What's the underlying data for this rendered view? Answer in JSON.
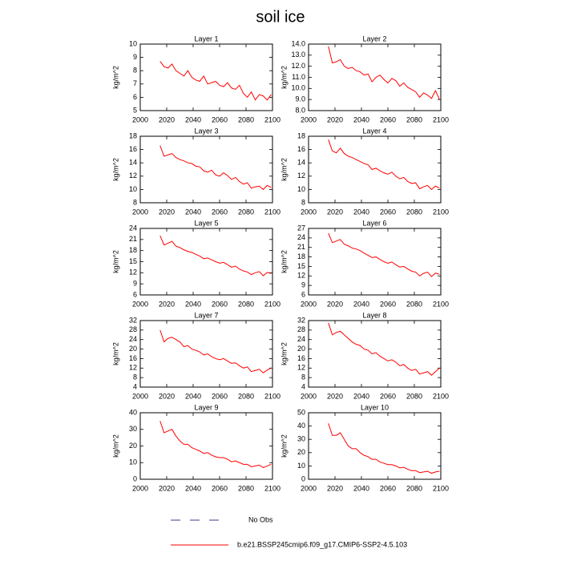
{
  "title": "soil ice",
  "chart_data": [
    {
      "type": "line",
      "title": "Layer 1",
      "ylabel": "kg/m^2",
      "xlim": [
        2000,
        2100
      ],
      "xticks": [
        2000,
        2020,
        2040,
        2060,
        2080,
        2100
      ],
      "ylim": [
        5,
        10
      ],
      "yticks": [
        5,
        6,
        7,
        8,
        9,
        10
      ],
      "x": [
        2015,
        2018,
        2021,
        2024,
        2027,
        2030,
        2033,
        2036,
        2039,
        2042,
        2045,
        2048,
        2051,
        2054,
        2057,
        2060,
        2063,
        2066,
        2069,
        2072,
        2075,
        2078,
        2081,
        2084,
        2087,
        2090,
        2093,
        2096,
        2099
      ],
      "color": "#ff0000",
      "values": [
        8.7,
        8.3,
        8.2,
        8.5,
        8.0,
        7.8,
        7.6,
        8.0,
        7.5,
        7.3,
        7.2,
        7.6,
        7.0,
        7.1,
        7.2,
        6.9,
        6.8,
        7.1,
        6.7,
        6.6,
        6.9,
        6.3,
        6.0,
        6.4,
        5.8,
        6.2,
        6.1,
        5.8,
        6.2
      ]
    },
    {
      "type": "line",
      "title": "Layer 2",
      "ylabel": "kg/m^2",
      "xlim": [
        2000,
        2100
      ],
      "xticks": [
        2000,
        2020,
        2040,
        2060,
        2080,
        2100
      ],
      "ylim": [
        8,
        14
      ],
      "yticks": [
        {
          "value": 8,
          "label": "8.0"
        },
        {
          "value": 9,
          "label": "9.0"
        },
        {
          "value": 10,
          "label": "10.0"
        },
        {
          "value": 11,
          "label": "11.0"
        },
        {
          "value": 12,
          "label": "12.0"
        },
        {
          "value": 13,
          "label": "13.0"
        },
        {
          "value": 14,
          "label": "14.0"
        }
      ],
      "x": [
        2015,
        2018,
        2021,
        2024,
        2027,
        2030,
        2033,
        2036,
        2039,
        2042,
        2045,
        2048,
        2051,
        2054,
        2057,
        2060,
        2063,
        2066,
        2069,
        2072,
        2075,
        2078,
        2081,
        2084,
        2087,
        2090,
        2093,
        2096,
        2099
      ],
      "color": "#ff0000",
      "values": [
        13.8,
        12.3,
        12.4,
        12.6,
        12.0,
        11.8,
        11.9,
        11.6,
        11.5,
        11.2,
        11.3,
        10.6,
        11.0,
        11.2,
        10.8,
        10.5,
        10.9,
        10.7,
        10.2,
        10.5,
        10.1,
        9.9,
        9.7,
        9.2,
        9.6,
        9.4,
        9.1,
        9.8,
        9.0
      ]
    },
    {
      "type": "line",
      "title": "Layer 3",
      "ylabel": "kg/m^2",
      "xlim": [
        2000,
        2100
      ],
      "xticks": [
        2000,
        2020,
        2040,
        2060,
        2080,
        2100
      ],
      "ylim": [
        8,
        18
      ],
      "yticks": [
        8,
        10,
        12,
        14,
        16,
        18
      ],
      "x": [
        2015,
        2018,
        2021,
        2024,
        2027,
        2030,
        2033,
        2036,
        2039,
        2042,
        2045,
        2048,
        2051,
        2054,
        2057,
        2060,
        2063,
        2066,
        2069,
        2072,
        2075,
        2078,
        2081,
        2084,
        2087,
        2090,
        2093,
        2096,
        2099
      ],
      "color": "#ff0000",
      "values": [
        16.6,
        15.0,
        15.2,
        15.4,
        14.8,
        14.5,
        14.3,
        14.0,
        13.9,
        13.5,
        13.4,
        12.8,
        12.6,
        12.9,
        12.2,
        12.0,
        12.5,
        12.1,
        11.5,
        11.8,
        11.2,
        10.8,
        11.0,
        10.2,
        10.4,
        10.5,
        10.0,
        10.6,
        10.3
      ]
    },
    {
      "type": "line",
      "title": "Layer 4",
      "ylabel": "kg/m^2",
      "xlim": [
        2000,
        2100
      ],
      "xticks": [
        2000,
        2020,
        2040,
        2060,
        2080,
        2100
      ],
      "ylim": [
        8,
        18
      ],
      "yticks": [
        8,
        10,
        12,
        14,
        16,
        18
      ],
      "x": [
        2015,
        2018,
        2021,
        2024,
        2027,
        2030,
        2033,
        2036,
        2039,
        2042,
        2045,
        2048,
        2051,
        2054,
        2057,
        2060,
        2063,
        2066,
        2069,
        2072,
        2075,
        2078,
        2081,
        2084,
        2087,
        2090,
        2093,
        2096,
        2099
      ],
      "color": "#ff0000",
      "values": [
        17.5,
        15.8,
        15.5,
        16.2,
        15.4,
        15.0,
        14.8,
        14.5,
        14.2,
        13.9,
        13.7,
        13.0,
        13.2,
        12.8,
        12.5,
        12.3,
        12.6,
        12.0,
        11.6,
        11.8,
        11.2,
        10.9,
        11.0,
        10.1,
        10.4,
        10.6,
        10.0,
        10.5,
        10.2
      ]
    },
    {
      "type": "line",
      "title": "Layer 5",
      "ylabel": "kg/m^2",
      "xlim": [
        2000,
        2100
      ],
      "xticks": [
        2000,
        2020,
        2040,
        2060,
        2080,
        2100
      ],
      "ylim": [
        6,
        24
      ],
      "yticks": [
        6,
        9,
        12,
        15,
        18,
        21,
        24
      ],
      "x": [
        2015,
        2018,
        2021,
        2024,
        2027,
        2030,
        2033,
        2036,
        2039,
        2042,
        2045,
        2048,
        2051,
        2054,
        2057,
        2060,
        2063,
        2066,
        2069,
        2072,
        2075,
        2078,
        2081,
        2084,
        2087,
        2090,
        2093,
        2096,
        2099
      ],
      "color": "#ff0000",
      "values": [
        22,
        19.5,
        20,
        20.5,
        19.2,
        18.8,
        18.2,
        17.8,
        17.5,
        17,
        16.5,
        15.8,
        16,
        15.5,
        15,
        14.6,
        14.8,
        14.2,
        13.5,
        13.8,
        13,
        12.5,
        12.2,
        11.5,
        12,
        12.3,
        11.2,
        12.1,
        11.8
      ]
    },
    {
      "type": "line",
      "title": "Layer 6",
      "ylabel": "kg/m^2",
      "xlim": [
        2000,
        2100
      ],
      "xticks": [
        2000,
        2020,
        2040,
        2060,
        2080,
        2100
      ],
      "ylim": [
        6,
        27
      ],
      "yticks": [
        6,
        9,
        12,
        15,
        18,
        21,
        24,
        27
      ],
      "x": [
        2015,
        2018,
        2021,
        2024,
        2027,
        2030,
        2033,
        2036,
        2039,
        2042,
        2045,
        2048,
        2051,
        2054,
        2057,
        2060,
        2063,
        2066,
        2069,
        2072,
        2075,
        2078,
        2081,
        2084,
        2087,
        2090,
        2093,
        2096,
        2099
      ],
      "color": "#ff0000",
      "values": [
        25.5,
        22.5,
        23,
        23.5,
        22,
        21.5,
        20.8,
        20.5,
        20,
        19.2,
        18.5,
        17.8,
        18,
        17.2,
        16.5,
        16,
        16.4,
        15.5,
        14.8,
        15,
        14.2,
        13.5,
        13.2,
        12,
        12.8,
        13.2,
        11.8,
        12.9,
        12.5
      ]
    },
    {
      "type": "line",
      "title": "Layer 7",
      "ylabel": "kg/m^2",
      "xlim": [
        2000,
        2100
      ],
      "xticks": [
        2000,
        2020,
        2040,
        2060,
        2080,
        2100
      ],
      "ylim": [
        4,
        32
      ],
      "yticks": [
        4,
        8,
        12,
        16,
        20,
        24,
        28,
        32
      ],
      "x": [
        2015,
        2018,
        2021,
        2024,
        2027,
        2030,
        2033,
        2036,
        2039,
        2042,
        2045,
        2048,
        2051,
        2054,
        2057,
        2060,
        2063,
        2066,
        2069,
        2072,
        2075,
        2078,
        2081,
        2084,
        2087,
        2090,
        2093,
        2096,
        2099
      ],
      "color": "#ff0000",
      "values": [
        28,
        23,
        24.5,
        25,
        24,
        23,
        21,
        21.5,
        20,
        19.5,
        18.8,
        17.5,
        18,
        16.8,
        16,
        15.5,
        16,
        15,
        14,
        14.2,
        13,
        12,
        12.5,
        10.5,
        11,
        11.5,
        10,
        11.2,
        12
      ]
    },
    {
      "type": "line",
      "title": "Layer 8",
      "ylabel": "kg/m^2",
      "xlim": [
        2000,
        2100
      ],
      "xticks": [
        2000,
        2020,
        2040,
        2060,
        2080,
        2100
      ],
      "ylim": [
        4,
        32
      ],
      "yticks": [
        4,
        8,
        12,
        16,
        20,
        24,
        28,
        32
      ],
      "x": [
        2015,
        2018,
        2021,
        2024,
        2027,
        2030,
        2033,
        2036,
        2039,
        2042,
        2045,
        2048,
        2051,
        2054,
        2057,
        2060,
        2063,
        2066,
        2069,
        2072,
        2075,
        2078,
        2081,
        2084,
        2087,
        2090,
        2093,
        2096,
        2099
      ],
      "color": "#ff0000",
      "values": [
        31,
        26,
        27,
        27.5,
        26,
        24.5,
        23,
        22,
        21.5,
        20,
        19.5,
        18,
        18.5,
        17,
        16,
        15,
        15.5,
        14.5,
        13,
        13.5,
        12,
        11,
        11.5,
        9.5,
        10,
        10.5,
        9,
        10.5,
        12
      ]
    },
    {
      "type": "line",
      "title": "Layer 9",
      "ylabel": "kg/m^2",
      "xlim": [
        2000,
        2100
      ],
      "xticks": [
        2000,
        2020,
        2040,
        2060,
        2080,
        2100
      ],
      "ylim": [
        0,
        40
      ],
      "yticks": [
        0,
        10,
        20,
        30,
        40
      ],
      "x": [
        2015,
        2018,
        2021,
        2024,
        2027,
        2030,
        2033,
        2036,
        2039,
        2042,
        2045,
        2048,
        2051,
        2054,
        2057,
        2060,
        2063,
        2066,
        2069,
        2072,
        2075,
        2078,
        2081,
        2084,
        2087,
        2090,
        2093,
        2096,
        2099
      ],
      "color": "#ff0000",
      "values": [
        35,
        28,
        29,
        30,
        26,
        23,
        21,
        21,
        19,
        18,
        17,
        15.5,
        16,
        14.5,
        13.5,
        13,
        13,
        12,
        10.5,
        11,
        10,
        9,
        9,
        7.5,
        8,
        8.5,
        7,
        8,
        9
      ]
    },
    {
      "type": "line",
      "title": "Layer 10",
      "ylabel": "kg/m^2",
      "xlim": [
        2000,
        2100
      ],
      "xticks": [
        2000,
        2020,
        2040,
        2060,
        2080,
        2100
      ],
      "ylim": [
        0,
        50
      ],
      "yticks": [
        0,
        10,
        20,
        30,
        40,
        50
      ],
      "x": [
        2015,
        2018,
        2021,
        2024,
        2027,
        2030,
        2033,
        2036,
        2039,
        2042,
        2045,
        2048,
        2051,
        2054,
        2057,
        2060,
        2063,
        2066,
        2069,
        2072,
        2075,
        2078,
        2081,
        2084,
        2087,
        2090,
        2093,
        2096,
        2099
      ],
      "color": "#ff0000",
      "values": [
        42,
        33,
        33,
        35,
        30,
        25,
        23,
        23,
        20,
        18,
        17,
        15,
        15,
        13,
        12,
        11,
        11,
        10,
        8.5,
        9,
        7.5,
        6.5,
        6.5,
        5,
        5.5,
        6,
        4.5,
        5.5,
        6
      ]
    }
  ],
  "legend": [
    {
      "label": "No Obs",
      "color": "#3c3c8c",
      "dashed": true
    },
    {
      "label": "b.e21.BSSP245cmip6.f09_g17.CMIP6-SSP2-4.5.103",
      "color": "#ff0000",
      "dashed": false
    }
  ]
}
